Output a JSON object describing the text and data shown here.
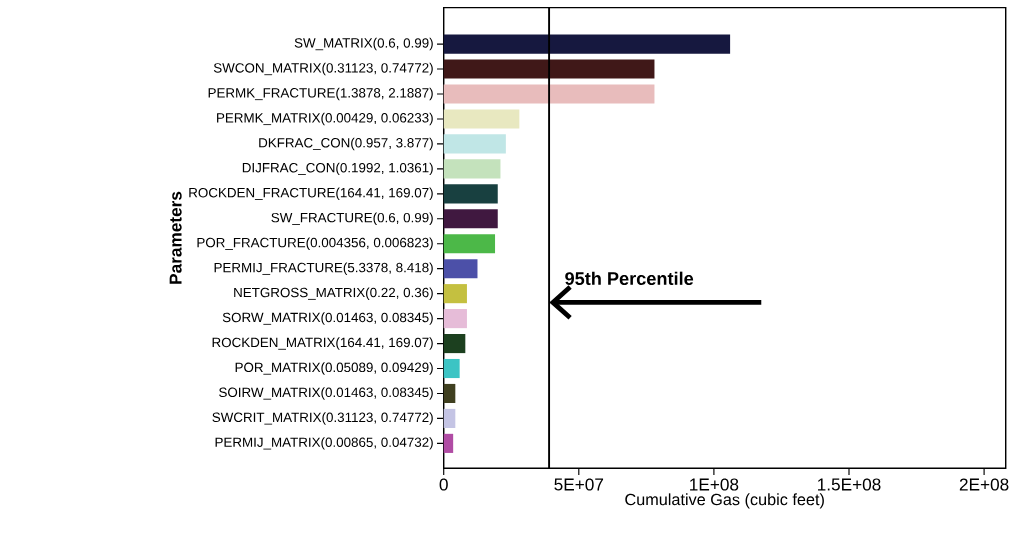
{
  "chart_data": {
    "type": "bar",
    "orientation": "horizontal",
    "xlabel": "Cumulative Gas (cubic feet)",
    "ylabel": "Parameters",
    "categories": [
      "SW_MATRIX(0.6, 0.99)",
      "SWCON_MATRIX(0.31123, 0.74772)",
      "PERMK_FRACTURE(1.3878, 2.1887)",
      "PERMK_MATRIX(0.00429, 0.06233)",
      "DKFRAC_CON(0.957, 3.877)",
      "DIJFRAC_CON(0.1992, 1.0361)",
      "ROCKDEN_FRACTURE(164.41, 169.07)",
      "SW_FRACTURE(0.6, 0.99)",
      "POR_FRACTURE(0.004356, 0.006823)",
      "PERMIJ_FRACTURE(5.3378, 8.418)",
      "NETGROSS_MATRIX(0.22, 0.36)",
      "SORW_MATRIX(0.01463, 0.08345)",
      "ROCKDEN_MATRIX(164.41, 169.07)",
      "POR_MATRIX(0.05089, 0.09429)",
      "SOIRW_MATRIX(0.01463, 0.08345)",
      "SWCRIT_MATRIX(0.31123, 0.74772)",
      "PERMIJ_MATRIX(0.00865, 0.04732)"
    ],
    "values": [
      106000000,
      78000000,
      78000000,
      28000000,
      23000000,
      21000000,
      20000000,
      20000000,
      19000000,
      12500000,
      8600000,
      8600000,
      8000000,
      5900000,
      4300000,
      4300000,
      3500000
    ],
    "colors": [
      "#16183f",
      "#401818",
      "#e8bcbc",
      "#e8e8c0",
      "#c0e6e6",
      "#c4e2bc",
      "#184040",
      "#401840",
      "#4cb848",
      "#4c50a8",
      "#c4c040",
      "#e6bcd8",
      "#1c401f",
      "#3cc4c4",
      "#404020",
      "#c4c4e4",
      "#b04ca4"
    ],
    "xlim": [
      0,
      208000000
    ],
    "xticks": [
      0,
      {
        "value": 50000000,
        "label": "5E+07"
      },
      {
        "value": 100000000,
        "label": "1E+08"
      },
      {
        "value": 150000000,
        "label": "1.5E+08"
      },
      {
        "value": 200000000,
        "label": "2E+08"
      }
    ],
    "ref_lines": [
      {
        "axis": "x",
        "value": 39000000,
        "label": "95th Percentile",
        "color": "#000000"
      }
    ],
    "grid": false
  }
}
